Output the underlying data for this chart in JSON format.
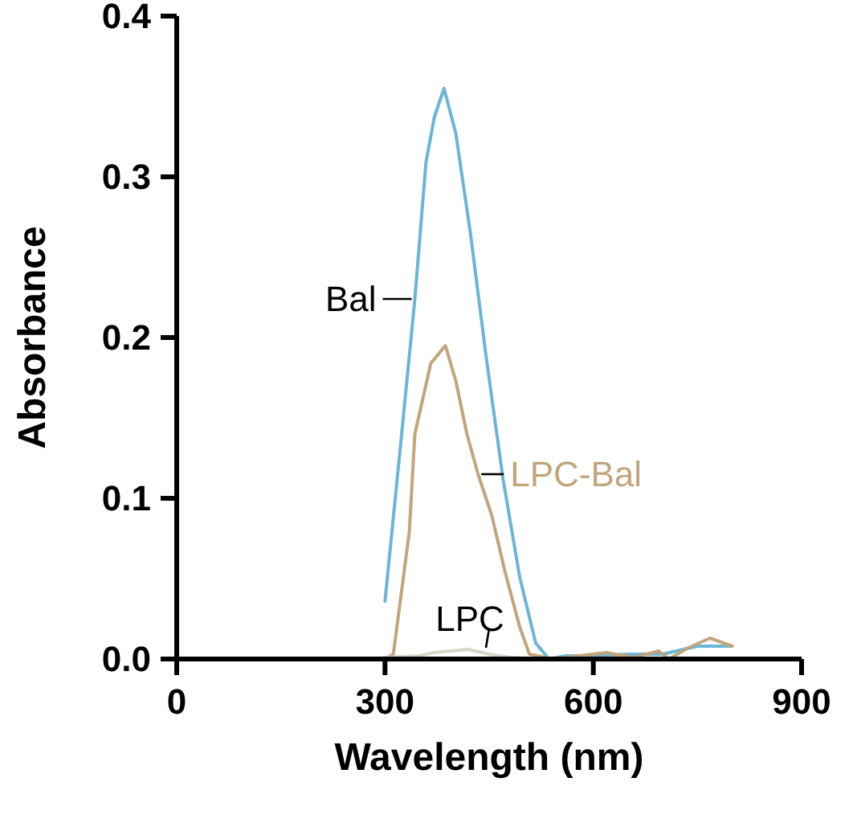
{
  "chart_data": {
    "type": "line",
    "xlabel": "Wavelength (nm)",
    "ylabel": "Absorbance",
    "xlim": [
      0,
      900
    ],
    "ylim": [
      0,
      0.4
    ],
    "xticks": [
      0,
      300,
      600,
      900
    ],
    "yticks": [
      {
        "value": 0,
        "label": "0.0"
      },
      {
        "value": 0.1,
        "label": "0.1"
      },
      {
        "value": 0.2,
        "label": "0.2"
      },
      {
        "value": 0.3,
        "label": "0.3"
      },
      {
        "value": 0.4,
        "label": "0.4"
      }
    ],
    "grid": false,
    "marker": "none",
    "line_style": "solid",
    "series": [
      {
        "name": "Bal",
        "color": "#6bb5d6",
        "x": [
          300,
          324,
          343,
          359,
          371,
          385,
          402,
          423,
          446,
          470,
          494,
          517,
          536,
          560,
          600,
          650,
          700,
          750,
          800
        ],
        "values": [
          0.036,
          0.14,
          0.224,
          0.309,
          0.337,
          0.355,
          0.327,
          0.265,
          0.187,
          0.112,
          0.051,
          0.01,
          0,
          0.002,
          0.002,
          0.003,
          0.003,
          0.008,
          0.008
        ]
      },
      {
        "name": "LPC-Bal",
        "color": "#c2a57c",
        "x": [
          300,
          312,
          335,
          343,
          366,
          387,
          402,
          418,
          434,
          454,
          473,
          494,
          508,
          541,
          619,
          659,
          694,
          709,
          737,
          768,
          800
        ],
        "values": [
          0,
          0.003,
          0.079,
          0.14,
          0.184,
          0.195,
          0.173,
          0.14,
          0.115,
          0.089,
          0.054,
          0.02,
          0.003,
          0,
          0.004,
          0.001,
          0.005,
          0,
          0.007,
          0.013,
          0.008
        ]
      },
      {
        "name": "LPC",
        "color": "#d8d4c8",
        "x": [
          300,
          350,
          370,
          420,
          450,
          480,
          520
        ],
        "values": [
          0.001,
          0.002,
          0.004,
          0.006,
          0.003,
          0.001,
          0
        ]
      }
    ]
  }
}
